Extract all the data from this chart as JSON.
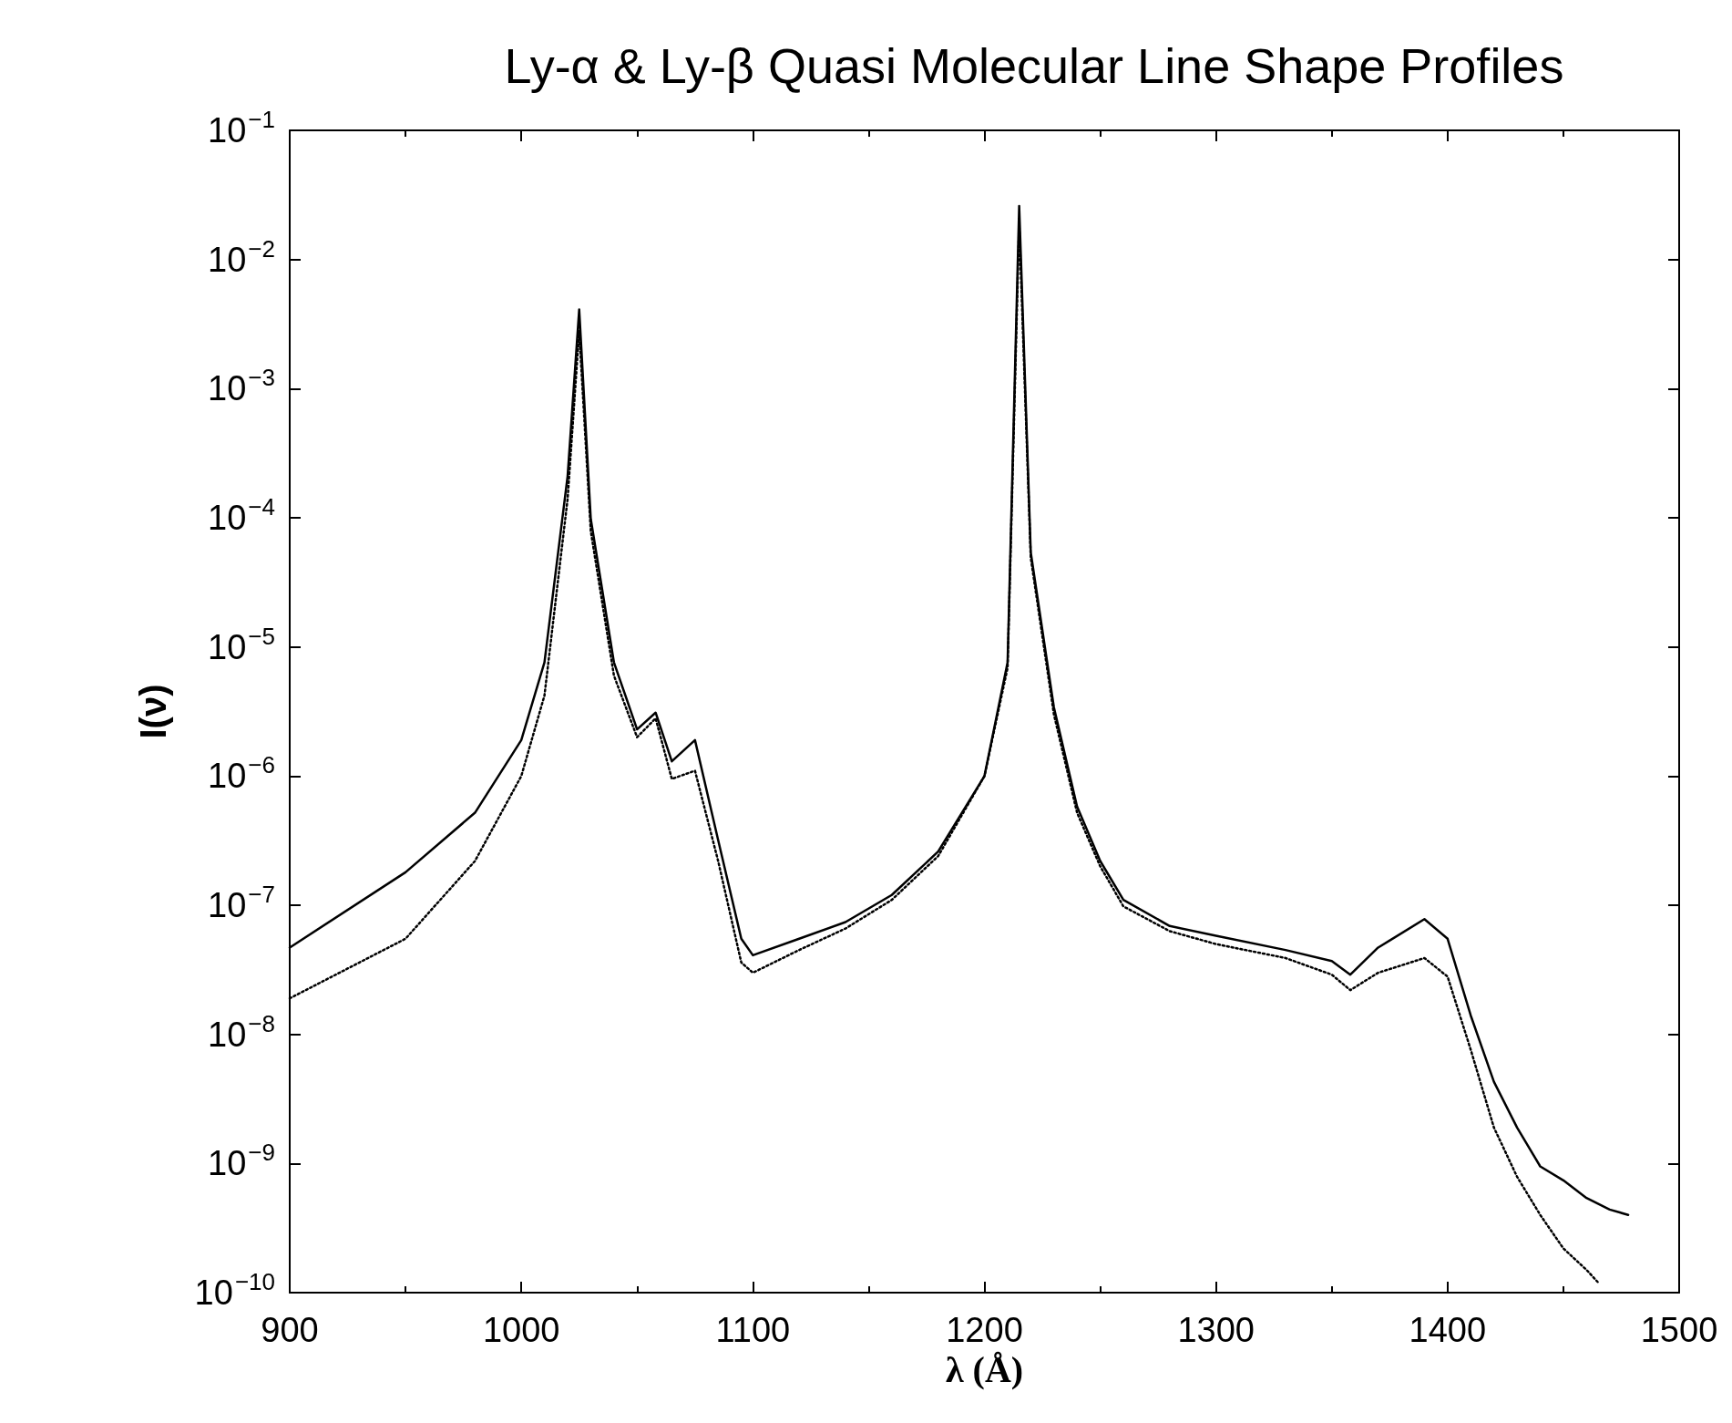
{
  "chart_data": {
    "type": "line",
    "title": "Ly-α & Ly-β Quasi Molecular Line Shape Profiles",
    "xlabel": "λ (Å)",
    "ylabel": "I(ν)",
    "log": "y",
    "grid": false,
    "marker": "none",
    "xlim": [
      900,
      1500
    ],
    "xticks": [
      900,
      1000,
      1100,
      1200,
      1300,
      1400,
      1500
    ],
    "ylim": [
      1e-10,
      0.1
    ],
    "yticks": [
      {
        "value": 1e-10,
        "label": "10$^{−10}$"
      },
      {
        "value": 1e-09,
        "label": "10$^{−9}$"
      },
      {
        "value": 1e-08,
        "label": "10$^{−8}$"
      },
      {
        "value": 1e-07,
        "label": "10$^{−7}$"
      },
      {
        "value": 1e-06,
        "label": "10$^{−6}$"
      },
      {
        "value": 1e-05,
        "label": "10$^{−5}$"
      },
      {
        "value": 0.0001,
        "label": "10$^{−4}$"
      },
      {
        "value": 0.001,
        "label": "10$^{−3}$"
      },
      {
        "value": 0.01,
        "label": "10$^{−2}$"
      },
      {
        "value": 0.1,
        "label": "10$^{−1}$"
      }
    ],
    "series": [
      {
        "color": "#000000",
        "line_style": "solid",
        "x": [
          900,
          950,
          980,
          1000,
          1010,
          1020,
          1025,
          1030,
          1040,
          1050,
          1058,
          1065,
          1075,
          1085,
          1095,
          1100,
          1120,
          1140,
          1160,
          1180,
          1200,
          1210,
          1215,
          1220,
          1230,
          1240,
          1250,
          1260,
          1280,
          1300,
          1330,
          1350,
          1358,
          1370,
          1390,
          1400,
          1410,
          1420,
          1430,
          1440,
          1450,
          1460,
          1470,
          1478
        ],
        "values": [
          4.7e-08,
          1.8e-07,
          5.2e-07,
          1.9e-06,
          7.6e-06,
          0.00021,
          0.0041,
          9.8e-05,
          7.6e-06,
          2.3e-06,
          3.1e-06,
          1.3e-06,
          1.9e-06,
          3.2e-07,
          5.5e-08,
          4.1e-08,
          5.5e-08,
          7.4e-08,
          1.2e-07,
          2.6e-07,
          1e-06,
          7.6e-06,
          0.026,
          5.4e-05,
          3.4e-06,
          5.8e-07,
          2.2e-07,
          1.1e-07,
          6.9e-08,
          5.8e-08,
          4.5e-08,
          3.7e-08,
          2.9e-08,
          4.7e-08,
          7.8e-08,
          5.5e-08,
          1.4e-08,
          4.3e-09,
          1.9e-09,
          9.5e-10,
          7.4e-10,
          5.4e-10,
          4.4e-10,
          4e-10
        ]
      },
      {
        "color": "#000000",
        "line_style": "dotted",
        "x": [
          900,
          950,
          980,
          1000,
          1010,
          1020,
          1025,
          1030,
          1040,
          1050,
          1058,
          1065,
          1075,
          1085,
          1095,
          1100,
          1120,
          1140,
          1160,
          1180,
          1200,
          1210,
          1215,
          1220,
          1230,
          1240,
          1250,
          1260,
          1280,
          1300,
          1330,
          1350,
          1358,
          1370,
          1390,
          1400,
          1410,
          1420,
          1430,
          1440,
          1450,
          1460,
          1465
        ],
        "values": [
          1.9e-08,
          5.5e-08,
          2.2e-07,
          1e-06,
          4.2e-06,
          0.00014,
          0.0028,
          7.9e-05,
          6e-06,
          2e-06,
          2.8e-06,
          9.5e-07,
          1.1e-06,
          2.2e-07,
          3.6e-08,
          3e-08,
          4.5e-08,
          6.6e-08,
          1.1e-07,
          2.4e-07,
          1e-06,
          6.9e-06,
          0.019,
          4.9e-05,
          3e-06,
          5.2e-07,
          2e-07,
          9.8e-08,
          6.3e-08,
          5e-08,
          3.9e-08,
          2.9e-08,
          2.2e-08,
          3e-08,
          3.9e-08,
          2.8e-08,
          7.6e-09,
          1.9e-09,
          7.9e-10,
          4e-10,
          2.2e-10,
          1.5e-10,
          1.2e-10
        ]
      }
    ]
  }
}
